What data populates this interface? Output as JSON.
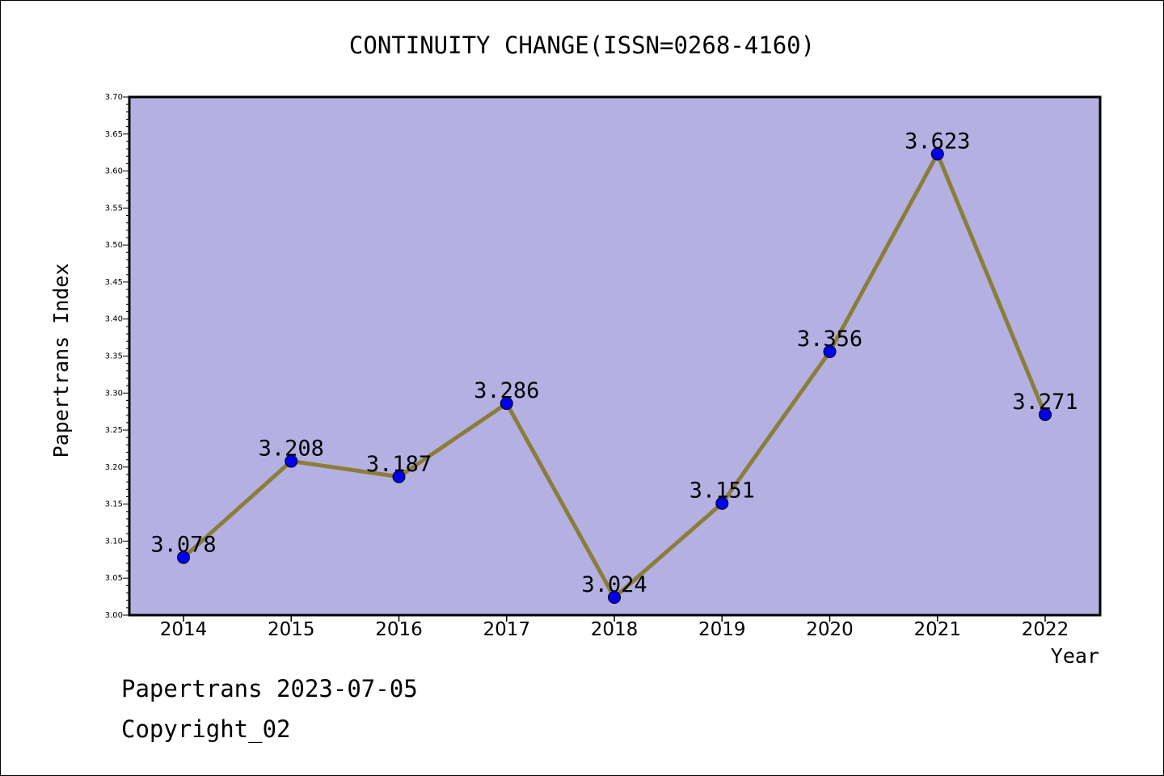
{
  "chart_data": {
    "type": "line",
    "title": "CONTINUITY CHANGE(ISSN=0268-4160)",
    "xlabel": "Year",
    "ylabel": "Papertrans Index",
    "categories": [
      "2014",
      "2015",
      "2016",
      "2017",
      "2018",
      "2019",
      "2020",
      "2021",
      "2022"
    ],
    "series": [
      {
        "values": [
          3.078,
          3.208,
          3.187,
          3.286,
          3.024,
          3.151,
          3.356,
          3.623,
          3.271
        ],
        "labels": [
          "3.078",
          "3.208",
          "3.187",
          "3.286",
          "3.024",
          "3.151",
          "3.356",
          "3.623",
          "3.271"
        ]
      }
    ],
    "ylim": [
      3.0,
      3.7
    ],
    "yticks": [
      "3.00",
      "3.05",
      "3.10",
      "3.15",
      "3.20",
      "3.25",
      "3.30",
      "3.35",
      "3.40",
      "3.45",
      "3.50",
      "3.55",
      "3.60",
      "3.65",
      "3.70"
    ],
    "grid": false,
    "colors": {
      "plot_background": "#b5b0e2",
      "line": "#8b7d3a",
      "marker": "#0000ee"
    }
  },
  "footer": {
    "date_line": "Papertrans 2023-07-05",
    "copyright": "Copyright_02"
  }
}
